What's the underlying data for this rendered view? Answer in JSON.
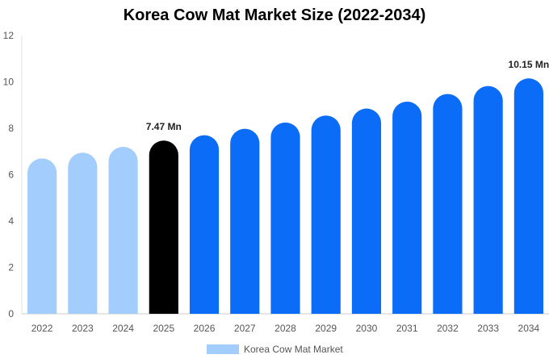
{
  "chart_data": {
    "type": "bar",
    "title": "Korea Cow Mat Market Size (2022-2034)",
    "xlabel": "",
    "ylabel": "",
    "ylim": [
      0,
      12
    ],
    "yticks": [
      0,
      2,
      4,
      6,
      8,
      10,
      12
    ],
    "categories": [
      "2022",
      "2023",
      "2024",
      "2025",
      "2026",
      "2027",
      "2028",
      "2029",
      "2030",
      "2031",
      "2032",
      "2033",
      "2034"
    ],
    "series": [
      {
        "name": "Korea Cow Mat Market",
        "values": [
          6.7,
          6.95,
          7.2,
          7.47,
          7.7,
          7.98,
          8.25,
          8.55,
          8.85,
          9.15,
          9.48,
          9.82,
          10.15
        ]
      }
    ],
    "bar_colors": [
      "#a3cdfd",
      "#a3cdfd",
      "#a3cdfd",
      "#000000",
      "#0a6cf7",
      "#0a6cf7",
      "#0a6cf7",
      "#0a6cf7",
      "#0a6cf7",
      "#0a6cf7",
      "#0a6cf7",
      "#0a6cf7",
      "#0a6cf7"
    ],
    "data_labels": [
      {
        "category": "2025",
        "text": "7.47 Mn"
      },
      {
        "category": "2034",
        "text": "10.15 Mn"
      }
    ],
    "legend": {
      "position": "bottom",
      "swatch_color": "#a3cdfd"
    },
    "grid": false
  }
}
